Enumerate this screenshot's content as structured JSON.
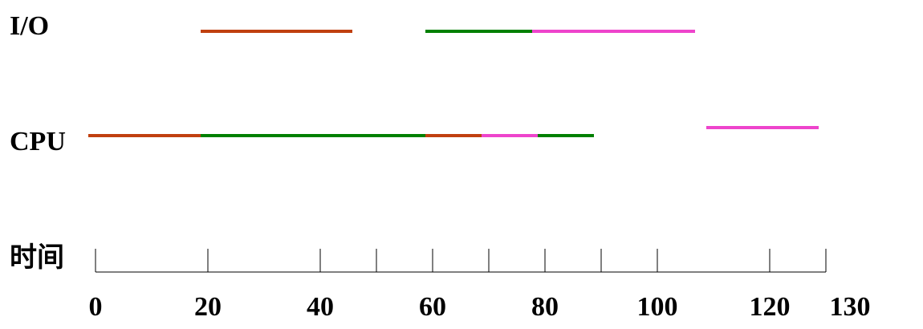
{
  "chart_data": {
    "type": "timeline",
    "rows": [
      {
        "label": "I/O",
        "segments": [
          {
            "start": 20,
            "end": 47,
            "color": "#c0400f"
          },
          {
            "start": 60,
            "end": 79,
            "color": "#008000"
          },
          {
            "start": 79,
            "end": 108,
            "color": "#ee44cc"
          }
        ]
      },
      {
        "label": "CPU",
        "segments": [
          {
            "start": 0,
            "end": 20,
            "color": "#c0400f"
          },
          {
            "start": 20,
            "end": 60,
            "color": "#008000"
          },
          {
            "start": 60,
            "end": 70,
            "color": "#c0400f"
          },
          {
            "start": 70,
            "end": 80,
            "color": "#ee44cc"
          },
          {
            "start": 80,
            "end": 90,
            "color": "#008000"
          },
          {
            "start": 110,
            "end": 130,
            "color": "#ee44cc"
          }
        ]
      }
    ],
    "axis": {
      "label": "时间",
      "min": 0,
      "max": 130,
      "tick_marks": [
        0,
        20,
        40,
        50,
        60,
        70,
        80,
        90,
        100,
        120,
        130
      ],
      "tick_labels": [
        {
          "value": 0,
          "text": "0"
        },
        {
          "value": 20,
          "text": "20"
        },
        {
          "value": 40,
          "text": "40"
        },
        {
          "value": 60,
          "text": "60"
        },
        {
          "value": 80,
          "text": "80"
        },
        {
          "value": 100,
          "text": "100"
        },
        {
          "value": 120,
          "text": "120"
        },
        {
          "value": 130,
          "text": "130"
        }
      ]
    }
  }
}
